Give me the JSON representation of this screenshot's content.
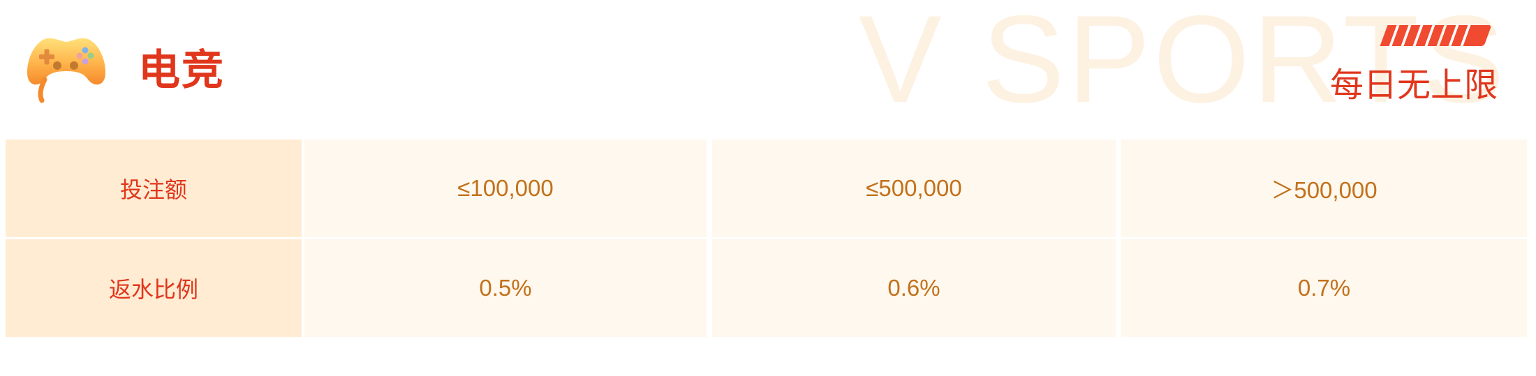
{
  "header": {
    "title": "电竞",
    "tag": "每日无上限",
    "watermark": "V SPORTS",
    "icon": "gamepad-icon"
  },
  "colors": {
    "accent": "#e0361c",
    "value_text": "#c2711b",
    "header_cell_bg": "#ffecd3",
    "value_cell_bg": "#fef8ee",
    "watermark": "#fdf1e2"
  },
  "table": {
    "rows": [
      {
        "label": "投注额",
        "values": [
          "≤100,000",
          "≤500,000",
          "＞500,000"
        ]
      },
      {
        "label": "返水比例",
        "values": [
          "0.5%",
          "0.6%",
          "0.7%"
        ]
      }
    ]
  }
}
